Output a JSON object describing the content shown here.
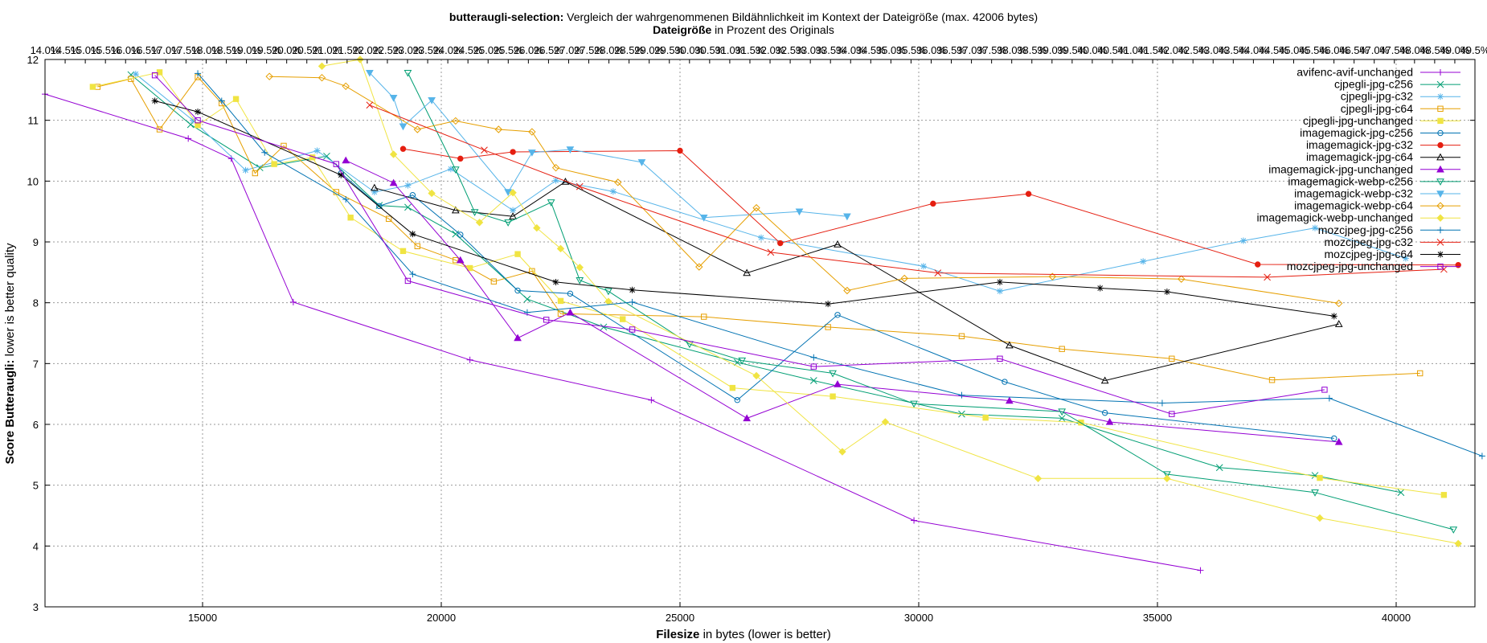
{
  "chart_data": {
    "type": "line",
    "title": {
      "bold": "butteraugli-selection:",
      "rest": " Vergleich der wahrgenommenen Bildähnlichkeit im Kontext der Dateigröße (max. 42006 bytes)"
    },
    "x2label": {
      "bold": "Dateigröße",
      "rest": " in Prozent des Originals"
    },
    "xlabel": {
      "bold": "Filesize",
      "rest": " in bytes (lower is better)"
    },
    "ylabel": {
      "bold": "Score Butteraugli:",
      "rest": " lower is better quality"
    },
    "xlim": [
      11700,
      41650
    ],
    "ylim": [
      3,
      12
    ],
    "x2lim": [
      14.0,
      49.5
    ],
    "x_ticks": [
      15000,
      20000,
      25000,
      30000,
      35000,
      40000
    ],
    "y_ticks": [
      3,
      4,
      5,
      6,
      7,
      8,
      9,
      10,
      11,
      12
    ],
    "x2_ticks": [
      "14.0%",
      "14.5%",
      "15.0%",
      "15.5%",
      "16.0%",
      "16.5%",
      "17.0%",
      "17.5%",
      "18.0%",
      "18.5%",
      "19.0%",
      "19.5%",
      "20.0%",
      "20.5%",
      "21.0%",
      "21.5%",
      "22.0%",
      "22.5%",
      "23.0%",
      "23.5%",
      "24.0%",
      "24.5%",
      "25.0%",
      "25.5%",
      "26.0%",
      "26.5%",
      "27.0%",
      "27.5%",
      "28.0%",
      "28.5%",
      "29.0%",
      "29.5%",
      "30.0%",
      "30.5%",
      "31.0%",
      "31.5%",
      "32.0%",
      "32.5%",
      "33.0%",
      "33.5%",
      "34.0%",
      "34.5%",
      "35.0%",
      "35.5%",
      "36.0%",
      "36.5%",
      "37.0%",
      "37.5%",
      "38.0%",
      "38.5%",
      "39.0%",
      "39.5%",
      "40.0%",
      "40.5%",
      "41.0%",
      "41.5%",
      "42.0%",
      "42.5%",
      "43.0%",
      "43.5%",
      "44.0%",
      "44.5%",
      "45.0%",
      "45.5%",
      "46.0%",
      "46.5%",
      "47.0%",
      "47.5%",
      "48.0%",
      "48.5%",
      "49.0%",
      "49.5%"
    ],
    "grid": true,
    "legend_position": "top-right",
    "series": [
      {
        "name": "avifenc-avif-unchanged",
        "color": "#9400d3",
        "marker": "plus",
        "points": [
          [
            11700,
            11.43
          ],
          [
            14700,
            10.7
          ],
          [
            15600,
            10.37
          ],
          [
            16900,
            8.01
          ],
          [
            20600,
            7.06
          ],
          [
            24400,
            6.4
          ],
          [
            29900,
            4.42
          ],
          [
            35900,
            3.6
          ]
        ]
      },
      {
        "name": "cjpegli-jpg-c256",
        "color": "#009e73",
        "marker": "x",
        "points": [
          [
            13500,
            11.75
          ],
          [
            14750,
            10.93
          ],
          [
            16200,
            10.22
          ],
          [
            17600,
            10.41
          ],
          [
            18700,
            9.6
          ],
          [
            19300,
            9.57
          ],
          [
            20300,
            9.13
          ],
          [
            21800,
            8.06
          ],
          [
            23400,
            7.6
          ],
          [
            26200,
            7.02
          ],
          [
            27800,
            6.72
          ],
          [
            30900,
            6.17
          ],
          [
            33000,
            6.1
          ],
          [
            36300,
            5.29
          ],
          [
            38300,
            5.16
          ],
          [
            40100,
            4.88
          ]
        ]
      },
      {
        "name": "cjpegli-jpg-c32",
        "color": "#56b4e9",
        "marker": "star",
        "points": [
          [
            13600,
            11.76
          ],
          [
            14800,
            11.0
          ],
          [
            15900,
            10.18
          ],
          [
            17400,
            10.5
          ],
          [
            18600,
            9.82
          ],
          [
            19300,
            9.93
          ],
          [
            20200,
            10.2
          ],
          [
            21500,
            9.52
          ],
          [
            22400,
            10.01
          ],
          [
            23600,
            9.83
          ],
          [
            26700,
            9.07
          ],
          [
            30100,
            8.6
          ],
          [
            31700,
            8.19
          ],
          [
            34700,
            8.68
          ],
          [
            36800,
            9.02
          ],
          [
            38300,
            9.23
          ],
          [
            40200,
            8.73
          ]
        ]
      },
      {
        "name": "cjpegli-jpg-c64",
        "color": "#e69f00",
        "marker": "square",
        "points": [
          [
            12800,
            11.55
          ],
          [
            13500,
            11.68
          ],
          [
            14100,
            10.85
          ],
          [
            14900,
            11.71
          ],
          [
            15400,
            11.28
          ],
          [
            16100,
            10.13
          ],
          [
            16700,
            10.58
          ],
          [
            17800,
            9.82
          ],
          [
            18900,
            9.38
          ],
          [
            19500,
            8.93
          ],
          [
            20300,
            8.7
          ],
          [
            21100,
            8.35
          ],
          [
            21900,
            8.52
          ],
          [
            22500,
            7.82
          ],
          [
            25500,
            7.77
          ],
          [
            28100,
            7.6
          ],
          [
            30900,
            7.45
          ],
          [
            33000,
            7.24
          ],
          [
            35300,
            7.08
          ],
          [
            37400,
            6.73
          ],
          [
            40500,
            6.84
          ]
        ]
      },
      {
        "name": "cjpegli-jpg-unchanged",
        "color": "#f0e442",
        "marker": "filled-square",
        "points": [
          [
            12700,
            11.55
          ],
          [
            14100,
            11.79
          ],
          [
            14900,
            10.92
          ],
          [
            15700,
            11.35
          ],
          [
            16500,
            10.28
          ],
          [
            17300,
            10.39
          ],
          [
            18100,
            9.4
          ],
          [
            19200,
            8.85
          ],
          [
            20600,
            8.57
          ],
          [
            21600,
            8.8
          ],
          [
            22500,
            8.03
          ],
          [
            23800,
            7.73
          ],
          [
            26100,
            6.6
          ],
          [
            28200,
            6.46
          ],
          [
            31400,
            6.11
          ],
          [
            33400,
            6.03
          ],
          [
            38400,
            5.12
          ],
          [
            41000,
            4.84
          ]
        ]
      },
      {
        "name": "imagemagick-jpg-c256",
        "color": "#0072b2",
        "marker": "circle",
        "points": [
          [
            17900,
            10.13
          ],
          [
            18700,
            9.59
          ],
          [
            19400,
            9.77
          ],
          [
            20400,
            9.12
          ],
          [
            21600,
            8.2
          ],
          [
            22700,
            8.15
          ],
          [
            26200,
            6.4
          ],
          [
            28300,
            7.8
          ],
          [
            31800,
            6.7
          ],
          [
            33900,
            6.19
          ],
          [
            38700,
            5.77
          ]
        ]
      },
      {
        "name": "imagemagick-jpg-c32",
        "color": "#e51e10",
        "marker": "filled-circle",
        "points": [
          [
            19200,
            10.53
          ],
          [
            20400,
            10.37
          ],
          [
            21500,
            10.48
          ],
          [
            25000,
            10.5
          ],
          [
            27100,
            8.98
          ],
          [
            30300,
            9.63
          ],
          [
            32300,
            9.79
          ],
          [
            37100,
            8.63
          ],
          [
            41300,
            8.62
          ]
        ]
      },
      {
        "name": "imagemagick-jpg-c64",
        "color": "#000000",
        "marker": "triangle",
        "points": [
          [
            18600,
            9.89
          ],
          [
            20300,
            9.52
          ],
          [
            21500,
            9.42
          ],
          [
            22600,
            9.99
          ],
          [
            26400,
            8.49
          ],
          [
            28300,
            8.96
          ],
          [
            31900,
            7.3
          ],
          [
            33900,
            6.72
          ],
          [
            38800,
            7.65
          ]
        ]
      },
      {
        "name": "imagemagick-jpg-unchanged",
        "color": "#9400d3",
        "marker": "filled-triangle",
        "points": [
          [
            18000,
            10.34
          ],
          [
            19000,
            9.97
          ],
          [
            20400,
            8.7
          ],
          [
            21600,
            7.42
          ],
          [
            22700,
            7.84
          ],
          [
            26400,
            6.1
          ],
          [
            28300,
            6.66
          ],
          [
            31900,
            6.39
          ],
          [
            34000,
            6.04
          ],
          [
            38800,
            5.71
          ]
        ]
      },
      {
        "name": "imagemagick-webp-c256",
        "color": "#009e73",
        "marker": "down-triangle",
        "points": [
          [
            19300,
            11.78
          ],
          [
            20300,
            10.19
          ],
          [
            20700,
            9.49
          ],
          [
            21400,
            9.32
          ],
          [
            22300,
            9.65
          ],
          [
            22900,
            8.37
          ],
          [
            23500,
            8.19
          ],
          [
            25200,
            7.32
          ],
          [
            26300,
            7.05
          ],
          [
            28200,
            6.84
          ],
          [
            29900,
            6.34
          ],
          [
            33000,
            6.21
          ],
          [
            35200,
            5.18
          ],
          [
            38300,
            4.88
          ],
          [
            41200,
            4.27
          ]
        ]
      },
      {
        "name": "imagemagick-webp-c32",
        "color": "#56b4e9",
        "marker": "filled-down-triangle",
        "points": [
          [
            18500,
            11.78
          ],
          [
            19000,
            11.37
          ],
          [
            19200,
            10.9
          ],
          [
            19800,
            11.33
          ],
          [
            21400,
            9.82
          ],
          [
            21900,
            10.47
          ],
          [
            22700,
            10.52
          ],
          [
            24200,
            10.31
          ],
          [
            25500,
            9.4
          ],
          [
            27500,
            9.5
          ],
          [
            28500,
            9.42
          ]
        ]
      },
      {
        "name": "imagemagick-webp-c64",
        "color": "#e69f00",
        "marker": "diamond",
        "points": [
          [
            16400,
            11.72
          ],
          [
            17500,
            11.7
          ],
          [
            18000,
            11.56
          ],
          [
            19500,
            10.85
          ],
          [
            20300,
            10.99
          ],
          [
            21200,
            10.85
          ],
          [
            21900,
            10.81
          ],
          [
            22400,
            10.22
          ],
          [
            23700,
            9.98
          ],
          [
            25400,
            8.59
          ],
          [
            26600,
            9.56
          ],
          [
            28500,
            8.2
          ],
          [
            29700,
            8.4
          ],
          [
            32800,
            8.43
          ],
          [
            35500,
            8.39
          ],
          [
            38800,
            7.99
          ]
        ]
      },
      {
        "name": "imagemagick-webp-unchanged",
        "color": "#f0e442",
        "marker": "filled-diamond",
        "points": [
          [
            17500,
            11.89
          ],
          [
            18300,
            12.0
          ],
          [
            19000,
            10.44
          ],
          [
            19800,
            9.8
          ],
          [
            20800,
            9.32
          ],
          [
            21500,
            9.81
          ],
          [
            22000,
            9.23
          ],
          [
            22500,
            8.89
          ],
          [
            22900,
            8.58
          ],
          [
            23500,
            8.02
          ],
          [
            26600,
            6.8
          ],
          [
            28400,
            5.55
          ],
          [
            29300,
            6.04
          ],
          [
            32500,
            5.11
          ],
          [
            35200,
            5.11
          ],
          [
            38400,
            4.46
          ],
          [
            41300,
            4.04
          ]
        ]
      },
      {
        "name": "mozcjpeg-jpg-c256",
        "color": "#0072b2",
        "marker": "plus",
        "points": [
          [
            14900,
            11.77
          ],
          [
            15400,
            11.32
          ],
          [
            16300,
            10.47
          ],
          [
            18000,
            9.7
          ],
          [
            19400,
            8.47
          ],
          [
            21800,
            7.84
          ],
          [
            24000,
            8.01
          ],
          [
            27800,
            7.1
          ],
          [
            30900,
            6.48
          ],
          [
            35100,
            6.35
          ],
          [
            38600,
            6.43
          ],
          [
            41800,
            5.48
          ]
        ]
      },
      {
        "name": "mozcjpeg-jpg-c32",
        "color": "#e51e10",
        "marker": "x",
        "points": [
          [
            18500,
            11.25
          ],
          [
            20900,
            10.51
          ],
          [
            22900,
            9.91
          ],
          [
            26900,
            8.83
          ],
          [
            30400,
            8.49
          ],
          [
            37300,
            8.42
          ],
          [
            41000,
            8.55
          ]
        ]
      },
      {
        "name": "mozcjpeg-jpg-c64",
        "color": "#000000",
        "marker": "star",
        "points": [
          [
            14000,
            11.32
          ],
          [
            14900,
            11.14
          ],
          [
            17900,
            10.1
          ],
          [
            19400,
            9.13
          ],
          [
            22400,
            8.34
          ],
          [
            24000,
            8.21
          ],
          [
            28100,
            7.98
          ],
          [
            31700,
            8.34
          ],
          [
            33800,
            8.24
          ],
          [
            35200,
            8.18
          ],
          [
            38700,
            7.78
          ]
        ]
      },
      {
        "name": "mozcjpeg-jpg-unchanged",
        "color": "#9400d3",
        "marker": "square",
        "points": [
          [
            14000,
            11.74
          ],
          [
            14900,
            11.0
          ],
          [
            17800,
            10.28
          ],
          [
            19300,
            8.36
          ],
          [
            22200,
            7.72
          ],
          [
            24000,
            7.56
          ],
          [
            27800,
            6.95
          ],
          [
            31700,
            7.08
          ],
          [
            35300,
            6.17
          ],
          [
            38500,
            6.57
          ]
        ]
      }
    ]
  }
}
